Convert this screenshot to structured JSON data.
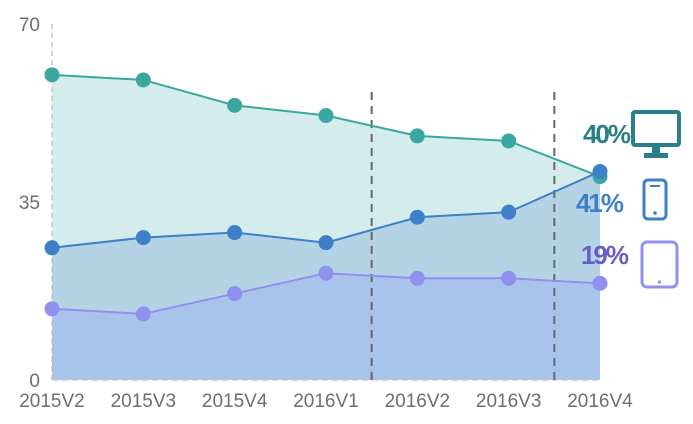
{
  "chart_data": {
    "type": "area",
    "categories": [
      "2015V2",
      "2015V3",
      "2015V4",
      "2016V1",
      "2016V2",
      "2016V3",
      "2016V4"
    ],
    "yticks": [
      0,
      35,
      70
    ],
    "ylim": [
      0,
      70
    ],
    "grid": false,
    "vertical_markers_after": [
      "2016V1",
      "2016V3"
    ],
    "series": [
      {
        "values": [
          60,
          59,
          54,
          52,
          48,
          47,
          40
        ],
        "color": "#3aa8a0",
        "fill": "#d5ecec",
        "end_label": "40%",
        "label_color": "#2a7f86",
        "icon": "desktop-monitor-icon"
      },
      {
        "values": [
          26,
          28,
          29,
          27,
          32,
          33,
          41
        ],
        "color": "#3d7fc9",
        "fill": "#b4d4e6",
        "end_label": "41%",
        "label_color": "#3d7fc9",
        "icon": "smartphone-icon"
      },
      {
        "values": [
          14,
          13,
          17,
          21,
          20,
          20,
          19
        ],
        "color": "#9090ef",
        "fill": "#a9c4ea",
        "end_label": "19%",
        "label_color": "#6a5cc8",
        "icon": "tablet-icon"
      }
    ]
  }
}
